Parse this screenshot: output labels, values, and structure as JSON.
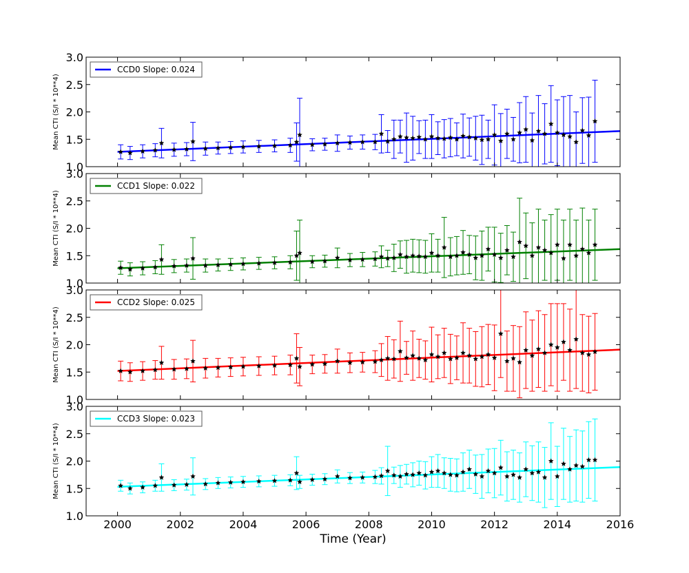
{
  "chart_data": [
    {
      "type": "scatter",
      "ylabel": "Mean CTI (S/I * 10**4)",
      "xlabel": "",
      "xlim": [
        1999,
        2016
      ],
      "ylim": [
        1.0,
        3.0
      ],
      "yticks": [
        "1.0",
        "1.5",
        "2.0",
        "2.5",
        "3.0"
      ],
      "legend": {
        "label": "CCD0 Slope: 0.024",
        "placement": "top-left"
      },
      "color": "#0000ff",
      "fit": {
        "start": [
          2000,
          1.27
        ],
        "end": [
          2016,
          1.65
        ]
      },
      "series": {
        "x": [
          2000.1,
          2000.4,
          2000.8,
          2001.2,
          2001.4,
          2001.8,
          2002.2,
          2002.4,
          2002.8,
          2003.2,
          2003.6,
          2004.0,
          2004.5,
          2005.0,
          2005.5,
          2005.7,
          2005.8,
          2006.2,
          2006.6,
          2007.0,
          2007.4,
          2007.8,
          2008.2,
          2008.4,
          2008.6,
          2008.8,
          2009.0,
          2009.2,
          2009.4,
          2009.6,
          2009.8,
          2010.0,
          2010.2,
          2010.4,
          2010.6,
          2010.8,
          2011.0,
          2011.2,
          2011.4,
          2011.6,
          2011.8,
          2012.0,
          2012.2,
          2012.4,
          2012.6,
          2012.8,
          2013.0,
          2013.2,
          2013.4,
          2013.6,
          2013.8,
          2014.0,
          2014.2,
          2014.4,
          2014.6,
          2014.8,
          2015.0,
          2015.2
        ],
        "y": [
          1.27,
          1.25,
          1.28,
          1.3,
          1.43,
          1.31,
          1.32,
          1.46,
          1.33,
          1.34,
          1.35,
          1.36,
          1.37,
          1.38,
          1.39,
          1.45,
          1.58,
          1.4,
          1.41,
          1.43,
          1.44,
          1.45,
          1.45,
          1.6,
          1.46,
          1.5,
          1.55,
          1.53,
          1.52,
          1.54,
          1.5,
          1.55,
          1.52,
          1.51,
          1.53,
          1.5,
          1.56,
          1.54,
          1.52,
          1.49,
          1.5,
          1.58,
          1.47,
          1.6,
          1.5,
          1.62,
          1.68,
          1.48,
          1.65,
          1.6,
          1.78,
          1.62,
          1.58,
          1.55,
          1.45,
          1.66,
          1.57,
          1.83
        ],
        "err": [
          0.13,
          0.12,
          0.12,
          0.12,
          0.27,
          0.12,
          0.12,
          0.35,
          0.12,
          0.11,
          0.11,
          0.11,
          0.11,
          0.11,
          0.13,
          0.35,
          0.67,
          0.11,
          0.11,
          0.15,
          0.12,
          0.13,
          0.14,
          0.35,
          0.2,
          0.35,
          0.3,
          0.45,
          0.4,
          0.3,
          0.35,
          0.4,
          0.3,
          0.35,
          0.35,
          0.3,
          0.4,
          0.35,
          0.4,
          0.45,
          0.35,
          0.55,
          0.5,
          0.45,
          0.4,
          0.55,
          0.6,
          0.5,
          0.65,
          0.55,
          0.7,
          0.6,
          0.7,
          0.75,
          0.55,
          0.6,
          0.7,
          0.75
        ]
      }
    },
    {
      "type": "scatter",
      "ylabel": "Mean CTI (S/I * 10**4)",
      "xlabel": "",
      "xlim": [
        1999,
        2016
      ],
      "ylim": [
        1.0,
        3.0
      ],
      "yticks": [
        "1.0",
        "1.5",
        "2.0",
        "2.5",
        "3.0"
      ],
      "legend": {
        "label": "CCD1 Slope: 0.022",
        "placement": "top-left"
      },
      "color": "#008000",
      "fit": {
        "start": [
          2000,
          1.27
        ],
        "end": [
          2016,
          1.62
        ]
      },
      "series": {
        "x": [
          2000.1,
          2000.4,
          2000.8,
          2001.2,
          2001.4,
          2001.8,
          2002.2,
          2002.4,
          2002.8,
          2003.2,
          2003.6,
          2004.0,
          2004.5,
          2005.0,
          2005.5,
          2005.7,
          2005.8,
          2006.2,
          2006.6,
          2007.0,
          2007.4,
          2007.8,
          2008.2,
          2008.4,
          2008.6,
          2008.8,
          2009.0,
          2009.2,
          2009.4,
          2009.6,
          2009.8,
          2010.0,
          2010.2,
          2010.4,
          2010.6,
          2010.8,
          2011.0,
          2011.2,
          2011.4,
          2011.6,
          2011.8,
          2012.0,
          2012.2,
          2012.4,
          2012.6,
          2012.8,
          2013.0,
          2013.2,
          2013.4,
          2013.6,
          2013.8,
          2014.0,
          2014.2,
          2014.4,
          2014.6,
          2014.8,
          2015.0,
          2015.2
        ],
        "y": [
          1.28,
          1.25,
          1.27,
          1.29,
          1.43,
          1.31,
          1.32,
          1.45,
          1.32,
          1.33,
          1.34,
          1.35,
          1.36,
          1.37,
          1.38,
          1.5,
          1.55,
          1.39,
          1.4,
          1.46,
          1.42,
          1.43,
          1.44,
          1.48,
          1.45,
          1.46,
          1.52,
          1.48,
          1.5,
          1.49,
          1.48,
          1.55,
          1.5,
          1.65,
          1.48,
          1.5,
          1.56,
          1.52,
          1.46,
          1.5,
          1.62,
          1.52,
          1.46,
          1.6,
          1.48,
          1.75,
          1.68,
          1.5,
          1.65,
          1.6,
          1.55,
          1.7,
          1.45,
          1.7,
          1.5,
          1.62,
          1.55,
          1.7
        ],
        "err": [
          0.12,
          0.12,
          0.12,
          0.12,
          0.27,
          0.12,
          0.12,
          0.38,
          0.12,
          0.11,
          0.11,
          0.11,
          0.11,
          0.11,
          0.12,
          0.45,
          0.6,
          0.11,
          0.11,
          0.18,
          0.12,
          0.13,
          0.13,
          0.2,
          0.15,
          0.25,
          0.25,
          0.3,
          0.3,
          0.3,
          0.3,
          0.35,
          0.3,
          0.55,
          0.35,
          0.35,
          0.4,
          0.35,
          0.4,
          0.45,
          0.4,
          0.5,
          0.45,
          0.45,
          0.45,
          0.8,
          0.6,
          0.6,
          0.7,
          0.55,
          0.7,
          0.65,
          0.7,
          0.65,
          0.65,
          0.75,
          0.6,
          0.65
        ]
      }
    },
    {
      "type": "scatter",
      "ylabel": "Mean CTI (S/I * 10**4)",
      "xlabel": "",
      "xlim": [
        1999,
        2016
      ],
      "ylim": [
        1.0,
        3.0
      ],
      "yticks": [
        "1.0",
        "1.5",
        "2.0",
        "2.5",
        "3.0"
      ],
      "legend": {
        "label": "CCD2 Slope: 0.025",
        "placement": "top-left"
      },
      "color": "#ff0000",
      "fit": {
        "start": [
          2000,
          1.52
        ],
        "end": [
          2016,
          1.91
        ]
      },
      "series": {
        "x": [
          2000.1,
          2000.4,
          2000.8,
          2001.2,
          2001.4,
          2001.8,
          2002.2,
          2002.4,
          2002.8,
          2003.2,
          2003.6,
          2004.0,
          2004.5,
          2005.0,
          2005.5,
          2005.7,
          2005.8,
          2006.2,
          2006.6,
          2007.0,
          2007.4,
          2007.8,
          2008.2,
          2008.4,
          2008.6,
          2008.8,
          2009.0,
          2009.2,
          2009.4,
          2009.6,
          2009.8,
          2010.0,
          2010.2,
          2010.4,
          2010.6,
          2010.8,
          2011.0,
          2011.2,
          2011.4,
          2011.6,
          2011.8,
          2012.0,
          2012.2,
          2012.4,
          2012.6,
          2012.8,
          2013.0,
          2013.2,
          2013.4,
          2013.6,
          2013.8,
          2014.0,
          2014.2,
          2014.4,
          2014.6,
          2014.8,
          2015.0,
          2015.2
        ],
        "y": [
          1.52,
          1.5,
          1.52,
          1.54,
          1.67,
          1.55,
          1.56,
          1.7,
          1.57,
          1.58,
          1.59,
          1.6,
          1.61,
          1.62,
          1.63,
          1.75,
          1.6,
          1.64,
          1.65,
          1.7,
          1.67,
          1.68,
          1.69,
          1.72,
          1.75,
          1.74,
          1.88,
          1.76,
          1.8,
          1.75,
          1.72,
          1.82,
          1.78,
          1.85,
          1.74,
          1.76,
          1.85,
          1.8,
          1.74,
          1.78,
          1.82,
          1.76,
          2.2,
          1.7,
          1.75,
          1.68,
          1.9,
          1.8,
          1.92,
          1.85,
          2.0,
          1.95,
          2.05,
          1.9,
          2.1,
          1.85,
          1.82,
          1.87
        ],
        "err": [
          0.18,
          0.17,
          0.17,
          0.17,
          0.3,
          0.18,
          0.18,
          0.38,
          0.18,
          0.17,
          0.17,
          0.17,
          0.17,
          0.17,
          0.18,
          0.45,
          0.35,
          0.17,
          0.17,
          0.22,
          0.18,
          0.18,
          0.2,
          0.3,
          0.4,
          0.35,
          0.55,
          0.3,
          0.45,
          0.35,
          0.35,
          0.5,
          0.4,
          0.45,
          0.45,
          0.4,
          0.55,
          0.5,
          0.5,
          0.55,
          0.55,
          0.6,
          0.8,
          0.55,
          0.6,
          0.65,
          0.7,
          0.65,
          0.7,
          0.7,
          0.75,
          0.8,
          0.7,
          0.75,
          0.9,
          0.7,
          0.7,
          0.7
        ]
      }
    },
    {
      "type": "scatter",
      "ylabel": "Mean CTI (S/I * 10**4)",
      "xlabel": "Time (Year)",
      "xlim": [
        1999,
        2016
      ],
      "ylim": [
        1.0,
        3.0
      ],
      "yticks": [
        "1.0",
        "1.5",
        "2.0",
        "2.5",
        "3.0"
      ],
      "xticks": [
        "2000",
        "2002",
        "2004",
        "2006",
        "2008",
        "2010",
        "2012",
        "2014",
        "2016"
      ],
      "legend": {
        "label": "CCD3 Slope: 0.023",
        "placement": "top-left"
      },
      "color": "#00ffff",
      "fit": {
        "start": [
          2000,
          1.53
        ],
        "end": [
          2016,
          1.89
        ]
      },
      "series": {
        "x": [
          2000.1,
          2000.4,
          2000.8,
          2001.2,
          2001.4,
          2001.8,
          2002.2,
          2002.4,
          2002.8,
          2003.2,
          2003.6,
          2004.0,
          2004.5,
          2005.0,
          2005.5,
          2005.7,
          2005.8,
          2006.2,
          2006.6,
          2007.0,
          2007.4,
          2007.8,
          2008.2,
          2008.4,
          2008.6,
          2008.8,
          2009.0,
          2009.2,
          2009.4,
          2009.6,
          2009.8,
          2010.0,
          2010.2,
          2010.4,
          2010.6,
          2010.8,
          2011.0,
          2011.2,
          2011.4,
          2011.6,
          2011.8,
          2012.0,
          2012.2,
          2012.4,
          2012.6,
          2012.8,
          2013.0,
          2013.2,
          2013.4,
          2013.6,
          2013.8,
          2014.0,
          2014.2,
          2014.4,
          2014.6,
          2014.8,
          2015.0,
          2015.2
        ],
        "y": [
          1.55,
          1.5,
          1.52,
          1.55,
          1.7,
          1.56,
          1.57,
          1.72,
          1.58,
          1.6,
          1.61,
          1.62,
          1.63,
          1.64,
          1.65,
          1.78,
          1.62,
          1.66,
          1.67,
          1.72,
          1.69,
          1.7,
          1.71,
          1.73,
          1.82,
          1.74,
          1.72,
          1.76,
          1.75,
          1.78,
          1.74,
          1.8,
          1.82,
          1.78,
          1.75,
          1.74,
          1.8,
          1.85,
          1.76,
          1.72,
          1.82,
          1.78,
          1.88,
          1.72,
          1.75,
          1.7,
          1.85,
          1.78,
          1.8,
          1.7,
          2.0,
          1.72,
          1.95,
          1.85,
          1.92,
          1.9,
          2.02,
          2.02
        ],
        "err": [
          0.1,
          0.1,
          0.1,
          0.1,
          0.25,
          0.1,
          0.1,
          0.34,
          0.1,
          0.1,
          0.1,
          0.1,
          0.1,
          0.1,
          0.1,
          0.3,
          0.12,
          0.1,
          0.1,
          0.12,
          0.1,
          0.1,
          0.12,
          0.15,
          0.45,
          0.15,
          0.2,
          0.18,
          0.22,
          0.22,
          0.25,
          0.28,
          0.3,
          0.28,
          0.3,
          0.3,
          0.35,
          0.35,
          0.35,
          0.4,
          0.4,
          0.45,
          0.5,
          0.45,
          0.45,
          0.45,
          0.5,
          0.5,
          0.55,
          0.55,
          0.7,
          0.55,
          0.65,
          0.6,
          0.65,
          0.65,
          0.7,
          0.75
        ]
      }
    }
  ]
}
